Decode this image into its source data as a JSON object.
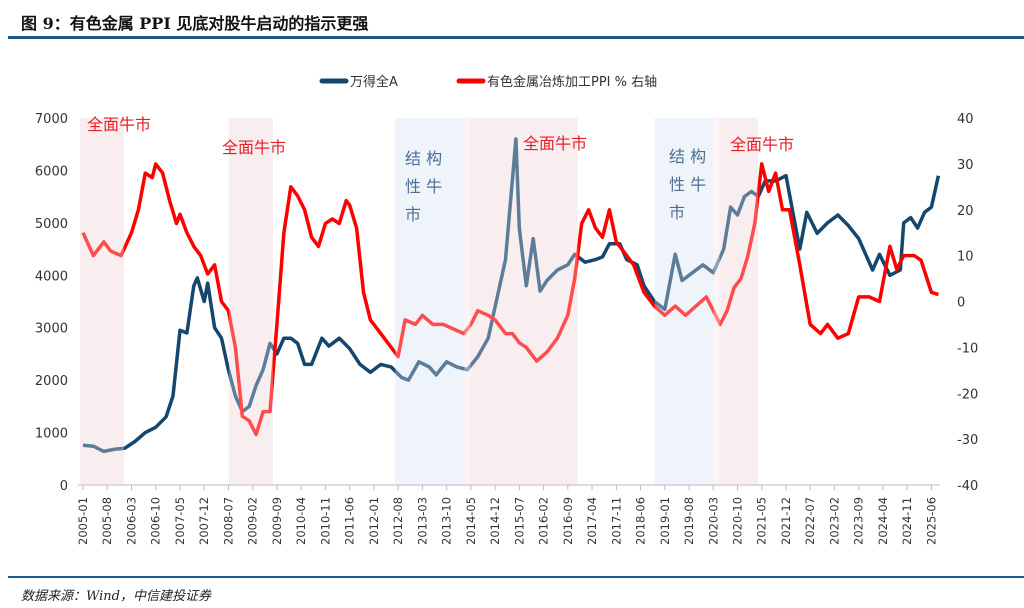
{
  "header": {
    "title": "图 9：有色金属 PPI 见底对股牛启动的指示更强"
  },
  "footer": {
    "source": "数据来源：Wind，中信建投证券"
  },
  "chart_data": {
    "type": "line",
    "title": "图 9：有色金属 PPI 见底对股牛启动的指示更强",
    "legend_position": "top",
    "grid": false,
    "xlabel": "",
    "ylabel": "",
    "y2label": "",
    "x_tick_labels": [
      "2005-01",
      "2005-08",
      "2006-03",
      "2006-10",
      "2007-05",
      "2007-12",
      "2008-07",
      "2009-02",
      "2009-09",
      "2010-04",
      "2010-11",
      "2011-06",
      "2012-01",
      "2012-08",
      "2013-03",
      "2013-10",
      "2014-05",
      "2014-12",
      "2015-07",
      "2016-02",
      "2016-09",
      "2017-04",
      "2017-11",
      "2018-06",
      "2019-01",
      "2019-08",
      "2020-03",
      "2020-10",
      "2021-05",
      "2021-12",
      "2022-07",
      "2023-02",
      "2023-09",
      "2024-04",
      "2024-11",
      "2025-06"
    ],
    "ylim": [
      0,
      7000
    ],
    "y_ticks": [
      0,
      1000,
      2000,
      3000,
      4000,
      5000,
      6000,
      7000
    ],
    "y2lim": [
      -40,
      40
    ],
    "y2_ticks": [
      -40,
      -30,
      -20,
      -10,
      0,
      10,
      20,
      30,
      40
    ],
    "series": [
      {
        "name": "万得全A",
        "axis": "left",
        "color": "#15466e",
        "x": [
          "2005-01",
          "2005-04",
          "2005-07",
          "2005-10",
          "2006-01",
          "2006-04",
          "2006-07",
          "2006-10",
          "2007-01",
          "2007-03",
          "2007-05",
          "2007-07",
          "2007-09",
          "2007-10",
          "2007-12",
          "2008-01",
          "2008-03",
          "2008-05",
          "2008-07",
          "2008-09",
          "2008-11",
          "2009-01",
          "2009-03",
          "2009-05",
          "2009-07",
          "2009-09",
          "2009-11",
          "2010-01",
          "2010-03",
          "2010-05",
          "2010-07",
          "2010-10",
          "2010-12",
          "2011-03",
          "2011-06",
          "2011-09",
          "2011-12",
          "2012-03",
          "2012-06",
          "2012-09",
          "2012-11",
          "2013-02",
          "2013-05",
          "2013-07",
          "2013-10",
          "2014-01",
          "2014-04",
          "2014-07",
          "2014-10",
          "2014-12",
          "2015-03",
          "2015-06",
          "2015-07",
          "2015-09",
          "2015-11",
          "2016-01",
          "2016-03",
          "2016-06",
          "2016-09",
          "2016-11",
          "2017-02",
          "2017-05",
          "2017-07",
          "2017-09",
          "2017-12",
          "2018-02",
          "2018-05",
          "2018-07",
          "2018-10",
          "2019-01",
          "2019-04",
          "2019-06",
          "2019-09",
          "2019-12",
          "2020-03",
          "2020-06",
          "2020-08",
          "2020-10",
          "2020-12",
          "2021-02",
          "2021-04",
          "2021-06",
          "2021-09",
          "2021-12",
          "2022-02",
          "2022-04",
          "2022-06",
          "2022-09",
          "2022-12",
          "2023-03",
          "2023-06",
          "2023-09",
          "2024-01",
          "2024-03",
          "2024-06",
          "2024-09",
          "2024-10",
          "2024-12",
          "2025-02",
          "2025-04",
          "2025-06",
          "2025-08"
        ],
        "values": [
          760,
          740,
          640,
          680,
          700,
          830,
          1000,
          1100,
          1300,
          1700,
          2950,
          2900,
          3800,
          3950,
          3500,
          3850,
          3000,
          2800,
          2200,
          1700,
          1400,
          1500,
          1900,
          2200,
          2700,
          2500,
          2800,
          2800,
          2700,
          2300,
          2300,
          2800,
          2650,
          2800,
          2600,
          2300,
          2150,
          2300,
          2250,
          2050,
          2000,
          2350,
          2250,
          2100,
          2350,
          2250,
          2200,
          2450,
          2800,
          3400,
          4300,
          6600,
          4900,
          3800,
          4700,
          3700,
          3900,
          4100,
          4200,
          4400,
          4250,
          4300,
          4350,
          4600,
          4600,
          4300,
          4200,
          3800,
          3500,
          3350,
          4400,
          3900,
          4050,
          4200,
          4050,
          4500,
          5300,
          5150,
          5500,
          5600,
          5500,
          5800,
          5800,
          5900,
          5200,
          4500,
          5200,
          4800,
          5000,
          5150,
          4950,
          4700,
          4100,
          4400,
          4000,
          4100,
          5000,
          5100,
          4900,
          5200,
          5300,
          5900
        ]
      },
      {
        "name": "有色金属冶炼加工PPI % 右轴",
        "axis": "right",
        "color": "#ff0000",
        "x": [
          "2005-01",
          "2005-04",
          "2005-07",
          "2005-09",
          "2005-12",
          "2006-03",
          "2006-05",
          "2006-07",
          "2006-09",
          "2006-10",
          "2006-12",
          "2007-02",
          "2007-04",
          "2007-05",
          "2007-07",
          "2007-09",
          "2007-11",
          "2008-01",
          "2008-03",
          "2008-05",
          "2008-07",
          "2008-09",
          "2008-11",
          "2009-01",
          "2009-03",
          "2009-05",
          "2009-07",
          "2009-09",
          "2009-11",
          "2010-01",
          "2010-03",
          "2010-05",
          "2010-07",
          "2010-09",
          "2010-11",
          "2011-01",
          "2011-03",
          "2011-05",
          "2011-06",
          "2011-08",
          "2011-10",
          "2011-12",
          "2012-03",
          "2012-06",
          "2012-08",
          "2012-10",
          "2013-01",
          "2013-03",
          "2013-06",
          "2013-09",
          "2013-12",
          "2014-03",
          "2014-05",
          "2014-07",
          "2014-10",
          "2014-12",
          "2015-03",
          "2015-05",
          "2015-07",
          "2015-09",
          "2015-12",
          "2016-03",
          "2016-06",
          "2016-09",
          "2016-11",
          "2017-01",
          "2017-03",
          "2017-05",
          "2017-07",
          "2017-09",
          "2017-11",
          "2018-01",
          "2018-04",
          "2018-07",
          "2018-10",
          "2019-01",
          "2019-04",
          "2019-07",
          "2019-10",
          "2020-01",
          "2020-03",
          "2020-05",
          "2020-07",
          "2020-09",
          "2020-11",
          "2021-01",
          "2021-03",
          "2021-05",
          "2021-07",
          "2021-09",
          "2021-11",
          "2022-01",
          "2022-04",
          "2022-07",
          "2022-10",
          "2022-12",
          "2023-03",
          "2023-06",
          "2023-09",
          "2023-12",
          "2024-03",
          "2024-06",
          "2024-08",
          "2024-10",
          "2025-01",
          "2025-03",
          "2025-06",
          "2025-08"
        ],
        "values": [
          15,
          10,
          13,
          11,
          10,
          15,
          20,
          28,
          27,
          30,
          28,
          22,
          17,
          19,
          15,
          12,
          10,
          6,
          8,
          0,
          -2,
          -10,
          -25,
          -26,
          -29,
          -24,
          -24,
          -5,
          15,
          25,
          23,
          20,
          14,
          12,
          17,
          18,
          17,
          22,
          21,
          16,
          2,
          -4,
          -7,
          -10,
          -12,
          -4,
          -5,
          -3,
          -5,
          -5,
          -6,
          -7,
          -5,
          -2,
          -3,
          -4,
          -7,
          -7,
          -9,
          -10,
          -13,
          -11,
          -8,
          -3,
          5,
          17,
          20,
          16,
          14,
          20,
          13,
          11,
          8,
          2,
          -1,
          -3,
          -1,
          -3,
          -1,
          1,
          -2,
          -5,
          -2,
          3,
          5,
          10,
          17,
          30,
          24,
          28,
          20,
          20,
          8,
          -5,
          -7,
          -5,
          -8,
          -7,
          1,
          1,
          0,
          12,
          7,
          10,
          10,
          9,
          2,
          1.5
        ]
      }
    ],
    "shaded_periods": [
      {
        "start": "2005-01",
        "end": "2005-12",
        "kind": "全面牛市",
        "color": "#f7e7e9"
      },
      {
        "start": "2008-08",
        "end": "2009-07",
        "kind": "全面牛市",
        "color": "#f7e7e9"
      },
      {
        "start": "2012-08",
        "end": "2014-04",
        "kind": "结构性牛市",
        "color": "#e8eef8"
      },
      {
        "start": "2014-04",
        "end": "2016-11",
        "kind": "全面牛市",
        "color": "#f7e7e9"
      },
      {
        "start": "2018-11",
        "end": "2020-04",
        "kind": "结构性牛市",
        "color": "#e8eef8"
      },
      {
        "start": "2020-04",
        "end": "2021-03",
        "kind": "全面牛市",
        "color": "#f7e7e9"
      }
    ],
    "annotations": {
      "full_bull": "全面牛市",
      "struct_line1": "结 构",
      "struct_line2": "性 牛",
      "struct_line3": "市"
    },
    "annotation_colors": {
      "full_bull": "#e8202a",
      "structural": "#4d6f95"
    }
  }
}
